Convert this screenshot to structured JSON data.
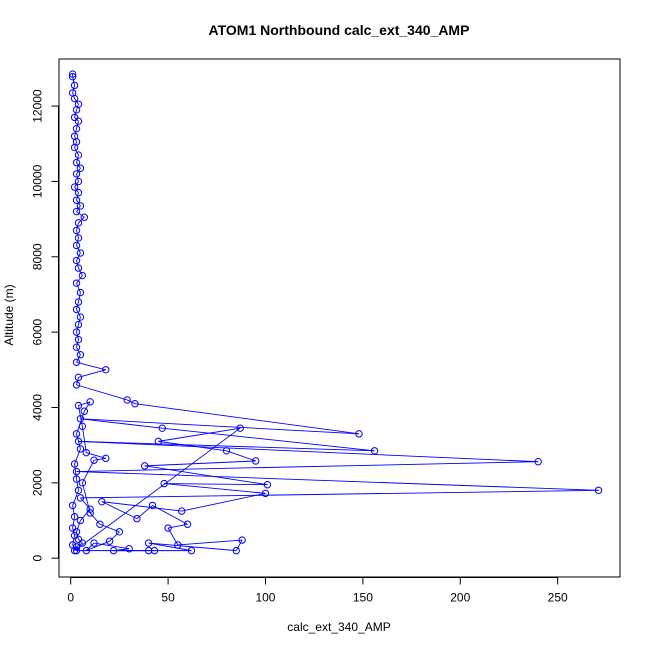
{
  "chart_data": {
    "type": "scatter",
    "title": "ATOM1 Northbound calc_ext_340_AMP",
    "xlabel": "calc_ext_340_AMP",
    "ylabel": "Altitude (m)",
    "xlim": [
      -6,
      282
    ],
    "ylim": [
      -500,
      13250
    ],
    "x_ticks": [
      0,
      50,
      100,
      150,
      200,
      250
    ],
    "y_ticks": [
      0,
      2000,
      4000,
      6000,
      8000,
      10000,
      12000
    ],
    "series_color": "#0000ff",
    "style": "points connected by lines",
    "series": [
      {
        "points": [
          [
            1,
            12850
          ],
          [
            1,
            12780
          ],
          [
            2,
            12550
          ],
          [
            1,
            12350
          ],
          [
            2,
            12200
          ],
          [
            4,
            12050
          ],
          [
            3,
            11900
          ],
          [
            2,
            11700
          ],
          [
            4,
            11600
          ],
          [
            3,
            11400
          ],
          [
            2,
            11200
          ],
          [
            3,
            11050
          ],
          [
            2,
            10900
          ],
          [
            4,
            10700
          ],
          [
            3,
            10500
          ],
          [
            5,
            10350
          ],
          [
            3,
            10200
          ],
          [
            4,
            10000
          ],
          [
            2,
            9850
          ],
          [
            4,
            9700
          ],
          [
            3,
            9500
          ],
          [
            5,
            9350
          ],
          [
            3,
            9200
          ],
          [
            7,
            9050
          ],
          [
            4,
            8900
          ],
          [
            3,
            8700
          ],
          [
            4,
            8500
          ],
          [
            3,
            8300
          ],
          [
            5,
            8100
          ],
          [
            3,
            7900
          ],
          [
            4,
            7700
          ],
          [
            6,
            7500
          ],
          [
            3,
            7300
          ],
          [
            5,
            7050
          ],
          [
            4,
            6800
          ],
          [
            3,
            6600
          ],
          [
            5,
            6400
          ],
          [
            4,
            6200
          ],
          [
            3,
            6000
          ],
          [
            4,
            5800
          ],
          [
            3,
            5600
          ],
          [
            5,
            5400
          ],
          [
            3,
            5200
          ],
          [
            18,
            5000
          ],
          [
            4,
            4800
          ],
          [
            3,
            4600
          ],
          [
            29,
            4200
          ],
          [
            33,
            4100
          ],
          [
            148,
            3300
          ],
          [
            5,
            3700
          ],
          [
            47,
            3450
          ],
          [
            156,
            2850
          ],
          [
            4,
            3100
          ],
          [
            240,
            2560
          ],
          [
            3,
            2300
          ],
          [
            271,
            1800
          ],
          [
            5,
            1600
          ],
          [
            10,
            1300
          ],
          [
            5,
            1000
          ],
          [
            3,
            700
          ],
          [
            4,
            500
          ],
          [
            6,
            400
          ],
          [
            3,
            300
          ],
          [
            2,
            200
          ],
          [
            87,
            3450
          ],
          [
            45,
            3100
          ],
          [
            80,
            2850
          ],
          [
            95,
            2580
          ],
          [
            38,
            2450
          ],
          [
            101,
            1950
          ],
          [
            48,
            1980
          ],
          [
            100,
            1720
          ],
          [
            57,
            1250
          ],
          [
            16,
            1500
          ],
          [
            34,
            1050
          ],
          [
            42,
            1400
          ],
          [
            60,
            900
          ],
          [
            50,
            800
          ],
          [
            55,
            350
          ],
          [
            88,
            480
          ],
          [
            85,
            200
          ],
          [
            40,
            400
          ],
          [
            62,
            200
          ],
          [
            22,
            200
          ],
          [
            30,
            250
          ],
          [
            12,
            400
          ],
          [
            8,
            200
          ],
          [
            20,
            450
          ],
          [
            25,
            700
          ],
          [
            15,
            900
          ],
          [
            10,
            1200
          ],
          [
            6,
            2000
          ],
          [
            12,
            2600
          ],
          [
            18,
            2650
          ],
          [
            8,
            2800
          ],
          [
            6,
            3500
          ],
          [
            4,
            4050
          ],
          [
            10,
            4150
          ],
          [
            7,
            3900
          ],
          [
            3,
            3300
          ],
          [
            5,
            2900
          ],
          [
            2,
            2500
          ],
          [
            3,
            2100
          ],
          [
            4,
            1800
          ],
          [
            1,
            1400
          ],
          [
            2,
            1100
          ],
          [
            1,
            800
          ],
          [
            2,
            600
          ],
          [
            1,
            350
          ],
          [
            3,
            200
          ],
          [
            40,
            200
          ],
          [
            43,
            200
          ]
        ]
      }
    ]
  }
}
